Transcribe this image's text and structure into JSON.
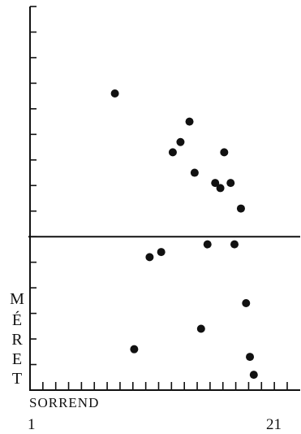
{
  "chart_data": {
    "type": "scatter",
    "xlabel": "SORREND",
    "ylabel_letters": [
      "M",
      "É",
      "R",
      "E",
      "T"
    ],
    "x_tick_labels": {
      "min": "1",
      "max": "21"
    },
    "xlim": [
      1,
      21
    ],
    "ylim": [
      0,
      15
    ],
    "reference_line_y": 6,
    "points": [
      {
        "x": 7.6,
        "y": 11.6
      },
      {
        "x": 9.1,
        "y": 1.6
      },
      {
        "x": 10.3,
        "y": 5.2
      },
      {
        "x": 11.2,
        "y": 5.4
      },
      {
        "x": 12.1,
        "y": 9.3
      },
      {
        "x": 12.7,
        "y": 9.7
      },
      {
        "x": 13.4,
        "y": 10.5
      },
      {
        "x": 13.8,
        "y": 8.5
      },
      {
        "x": 14.3,
        "y": 2.4
      },
      {
        "x": 14.8,
        "y": 5.7
      },
      {
        "x": 15.4,
        "y": 8.1
      },
      {
        "x": 15.8,
        "y": 7.9
      },
      {
        "x": 16.1,
        "y": 9.3
      },
      {
        "x": 16.6,
        "y": 8.1
      },
      {
        "x": 16.9,
        "y": 5.7
      },
      {
        "x": 17.4,
        "y": 7.1
      },
      {
        "x": 17.8,
        "y": 3.4
      },
      {
        "x": 18.1,
        "y": 1.3
      },
      {
        "x": 18.4,
        "y": 0.6
      }
    ]
  }
}
